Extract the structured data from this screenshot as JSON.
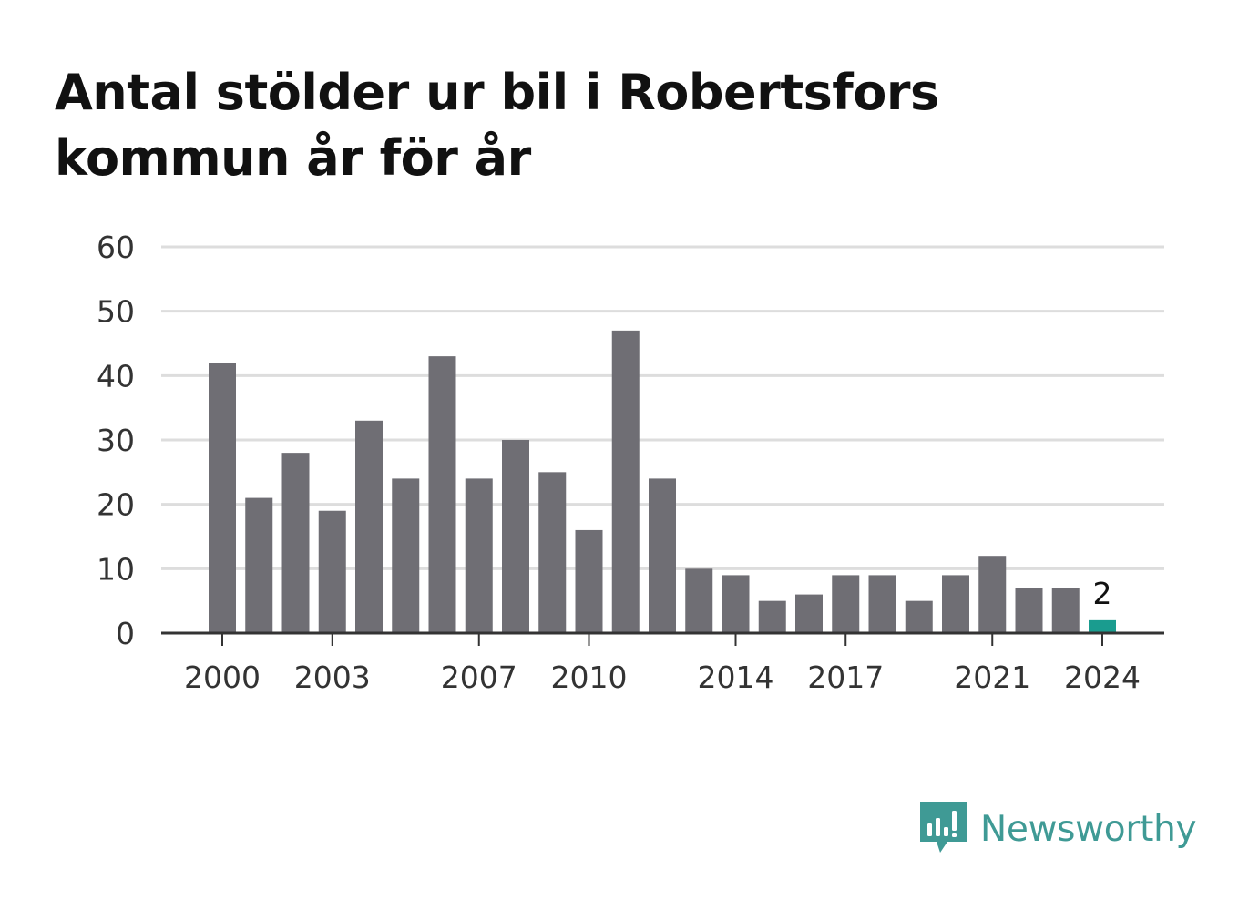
{
  "title": "Antal stölder ur bil i Robertsfors kommun år för år",
  "brand": {
    "name": "Newsworthy",
    "logo_icon": "newsworthy-logo-icon",
    "color": "#3f9a95"
  },
  "colors": {
    "bar": "#6f6e74",
    "highlight": "#1a9c8f",
    "grid": "#dddddd",
    "axis": "#333333"
  },
  "chart_data": {
    "type": "bar",
    "title": "Antal stölder ur bil i Robertsfors kommun år för år",
    "xlabel": "",
    "ylabel": "",
    "categories": [
      "2000",
      "2001",
      "2002",
      "2003",
      "2004",
      "2005",
      "2006",
      "2007",
      "2008",
      "2009",
      "2010",
      "2011",
      "2012",
      "2013",
      "2014",
      "2015",
      "2016",
      "2017",
      "2018",
      "2019",
      "2020",
      "2021",
      "2022",
      "2023",
      "2024"
    ],
    "values": [
      42,
      21,
      28,
      19,
      33,
      24,
      43,
      24,
      30,
      25,
      16,
      47,
      24,
      10,
      9,
      5,
      6,
      9,
      9,
      5,
      9,
      12,
      7,
      7,
      2
    ],
    "ylim": [
      0,
      60
    ],
    "yticks": [
      0,
      10,
      20,
      30,
      40,
      50,
      60
    ],
    "xtick_labels": [
      "2000",
      "2003",
      "2007",
      "2010",
      "2014",
      "2017",
      "2021",
      "2024"
    ],
    "highlight": {
      "category": "2024",
      "label": "2"
    },
    "grid": true,
    "legend": "none"
  }
}
